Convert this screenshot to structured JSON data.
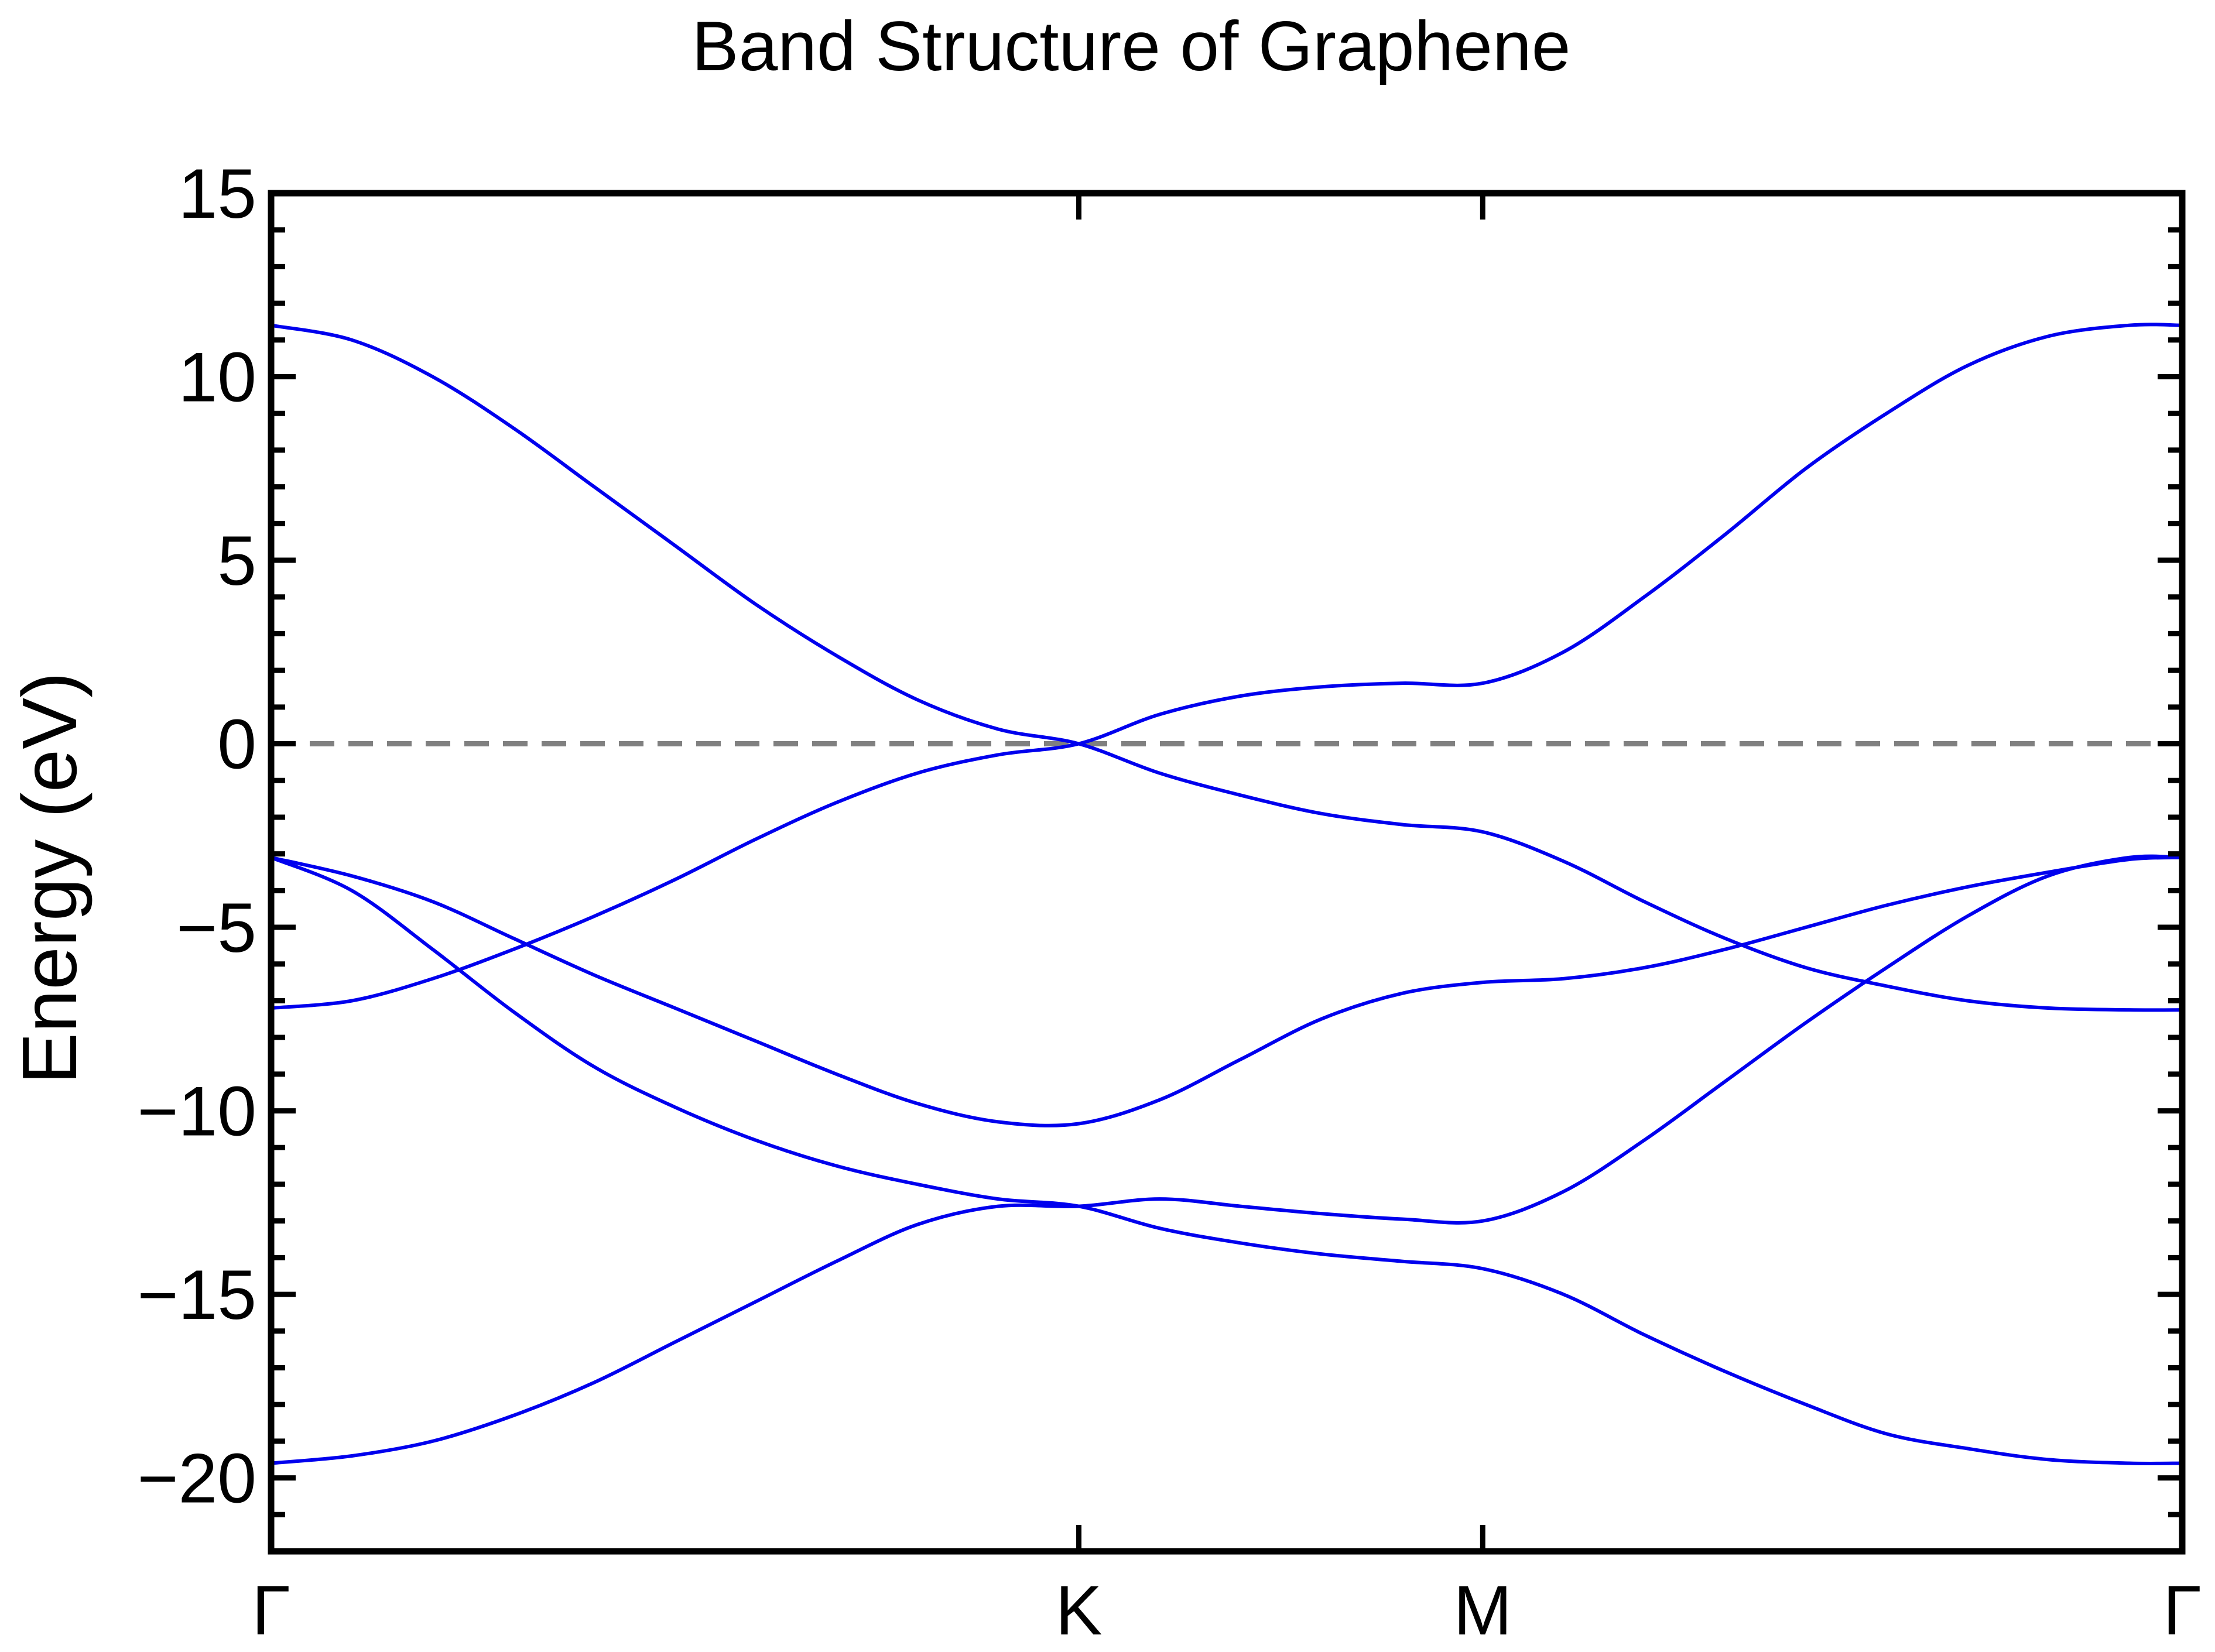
{
  "chart_data": {
    "type": "line",
    "title": "Band Structure of Graphene",
    "xlabel": "",
    "ylabel": "Energy (eV)",
    "ylim": [
      -22,
      15
    ],
    "yticks": [
      15,
      10,
      5,
      0,
      -5,
      -10,
      -15,
      -20
    ],
    "ytick_labels": [
      "15",
      "10",
      "5",
      "0",
      "−5",
      "−10",
      "−15",
      "−20"
    ],
    "xticks": [
      {
        "label": "Γ",
        "k": 0
      },
      {
        "label": "K",
        "k": 1.0
      },
      {
        "label": "M",
        "k": 1.5
      },
      {
        "label": "Γ",
        "k": 2.366
      }
    ],
    "grid": false,
    "legend": "none",
    "line_color": "#0000ee",
    "fermi_level": {
      "y": 0,
      "style": "dashed",
      "color": "#808080"
    },
    "series": [
      {
        "x": [
          0,
          0.1,
          0.2,
          0.3,
          0.4,
          0.5,
          0.6,
          0.7,
          0.8,
          0.9,
          1.0,
          1.1,
          1.2,
          1.3,
          1.4,
          1.5,
          1.6,
          1.7,
          1.8,
          1.9,
          2.0,
          2.1,
          2.2,
          2.3,
          2.366
        ],
        "y": [
          11.4,
          11.0,
          10.0,
          8.6,
          7.0,
          5.4,
          3.8,
          2.4,
          1.2,
          0.4,
          0.0,
          -0.8,
          -1.4,
          -1.9,
          -2.2,
          -2.4,
          -3.2,
          -4.3,
          -5.3,
          -6.1,
          -6.6,
          -7.0,
          -7.2,
          -7.25,
          -7.25
        ]
      },
      {
        "x": [
          0,
          0.1,
          0.2,
          0.3,
          0.4,
          0.5,
          0.6,
          0.7,
          0.8,
          0.9,
          1.0,
          1.1,
          1.2,
          1.3,
          1.4,
          1.5,
          1.6,
          1.7,
          1.8,
          1.9,
          2.0,
          2.1,
          2.2,
          2.3,
          2.366
        ],
        "y": [
          -7.2,
          -7.0,
          -6.4,
          -5.6,
          -4.7,
          -3.7,
          -2.6,
          -1.6,
          -0.8,
          -0.3,
          0.0,
          0.8,
          1.3,
          1.55,
          1.65,
          1.65,
          2.5,
          4.0,
          5.7,
          7.5,
          9.0,
          10.3,
          11.1,
          11.4,
          11.4
        ]
      },
      {
        "x": [
          0,
          0.1,
          0.2,
          0.3,
          0.4,
          0.5,
          0.6,
          0.7,
          0.8,
          0.9,
          1.0,
          1.1,
          1.2,
          1.3,
          1.4,
          1.5,
          1.6,
          1.7,
          1.8,
          1.9,
          2.0,
          2.1,
          2.2,
          2.3,
          2.366
        ],
        "y": [
          -3.1,
          -3.6,
          -4.3,
          -5.3,
          -6.3,
          -7.2,
          -8.1,
          -9.0,
          -9.8,
          -10.3,
          -10.35,
          -9.7,
          -8.6,
          -7.5,
          -6.8,
          -6.5,
          -6.4,
          -6.1,
          -5.6,
          -5.0,
          -4.4,
          -3.9,
          -3.5,
          -3.15,
          -3.1
        ]
      },
      {
        "x": [
          0,
          0.1,
          0.2,
          0.3,
          0.4,
          0.5,
          0.6,
          0.7,
          0.8,
          0.9,
          1.0,
          1.1,
          1.2,
          1.3,
          1.4,
          1.5,
          1.6,
          1.7,
          1.8,
          1.9,
          2.0,
          2.1,
          2.2,
          2.3,
          2.366
        ],
        "y": [
          -3.1,
          -4.0,
          -5.6,
          -7.3,
          -8.8,
          -9.9,
          -10.8,
          -11.5,
          -12.0,
          -12.4,
          -12.6,
          -13.2,
          -13.6,
          -13.9,
          -14.1,
          -14.3,
          -15.0,
          -16.1,
          -17.1,
          -18.0,
          -18.8,
          -19.2,
          -19.5,
          -19.6,
          -19.6
        ]
      },
      {
        "x": [
          0,
          0.1,
          0.2,
          0.3,
          0.4,
          0.5,
          0.6,
          0.7,
          0.8,
          0.9,
          1.0,
          1.1,
          1.2,
          1.3,
          1.4,
          1.5,
          1.6,
          1.7,
          1.8,
          1.9,
          2.0,
          2.1,
          2.2,
          2.3,
          2.366
        ],
        "y": [
          -19.6,
          -19.4,
          -19.0,
          -18.3,
          -17.4,
          -16.3,
          -15.2,
          -14.1,
          -13.1,
          -12.6,
          -12.6,
          -12.4,
          -12.6,
          -12.8,
          -12.95,
          -13.0,
          -12.2,
          -10.8,
          -9.2,
          -7.6,
          -6.1,
          -4.7,
          -3.6,
          -3.1,
          -3.1
        ]
      }
    ]
  }
}
